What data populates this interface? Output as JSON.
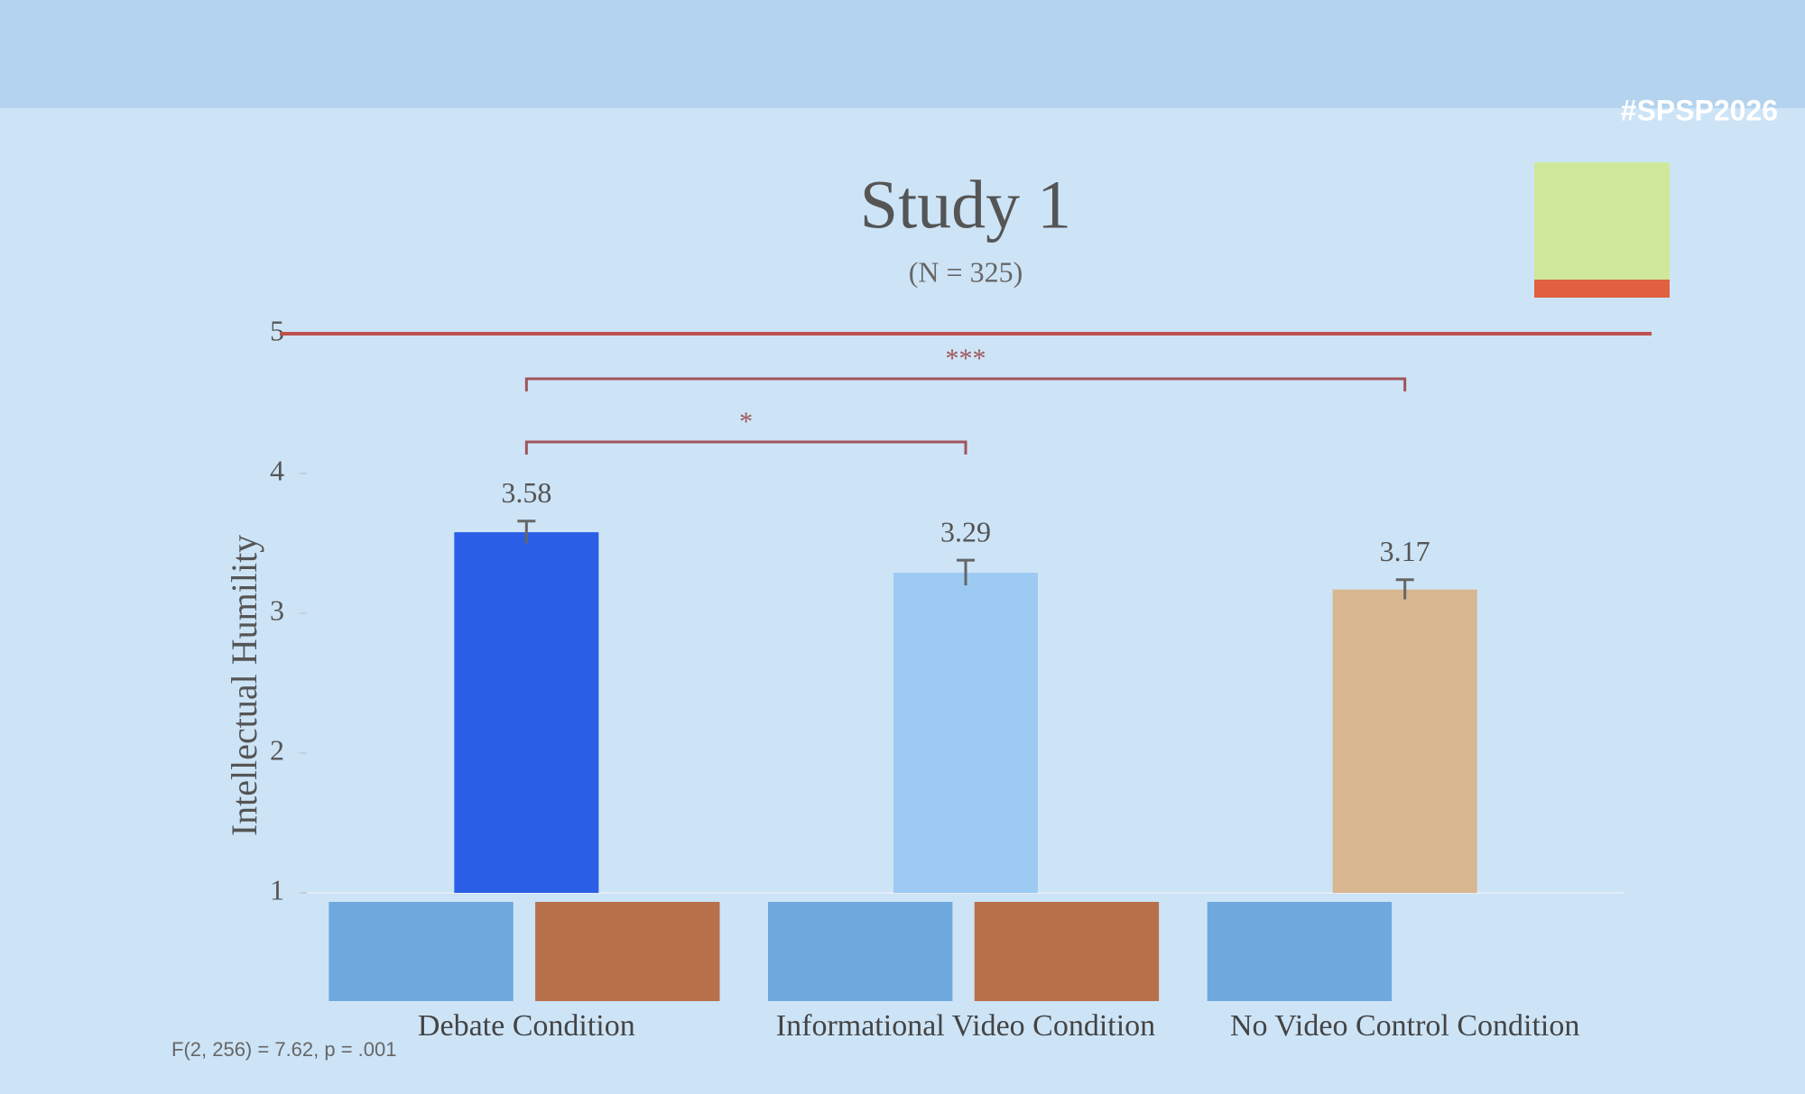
{
  "chart_data": {
    "type": "bar",
    "hashtag": "#SPSP2026",
    "title": "Study 1",
    "subtitle": "(N = 325)",
    "y_label": "Intellectual Humility",
    "categories": [
      "Debate Condition",
      "Informational Video Condition",
      "No Video Control Condition"
    ],
    "values": [
      3.58,
      3.29,
      3.17
    ],
    "errors": [
      0.08,
      0.09,
      0.07
    ],
    "colors": [
      "#2a5ee6",
      "#9ccaf2",
      "#d8b68f"
    ],
    "ylim": [
      1,
      5
    ],
    "yticks": [
      1,
      2,
      3,
      4,
      5
    ],
    "reference_line": {
      "value": 5,
      "color": "#c0504d"
    },
    "comparisons": [
      {
        "from": 0,
        "to": 1,
        "label": "*"
      },
      {
        "from": 0,
        "to": 2,
        "label": "***"
      }
    ],
    "footnote": "F(2, 256) = 7.62, p = .001"
  }
}
